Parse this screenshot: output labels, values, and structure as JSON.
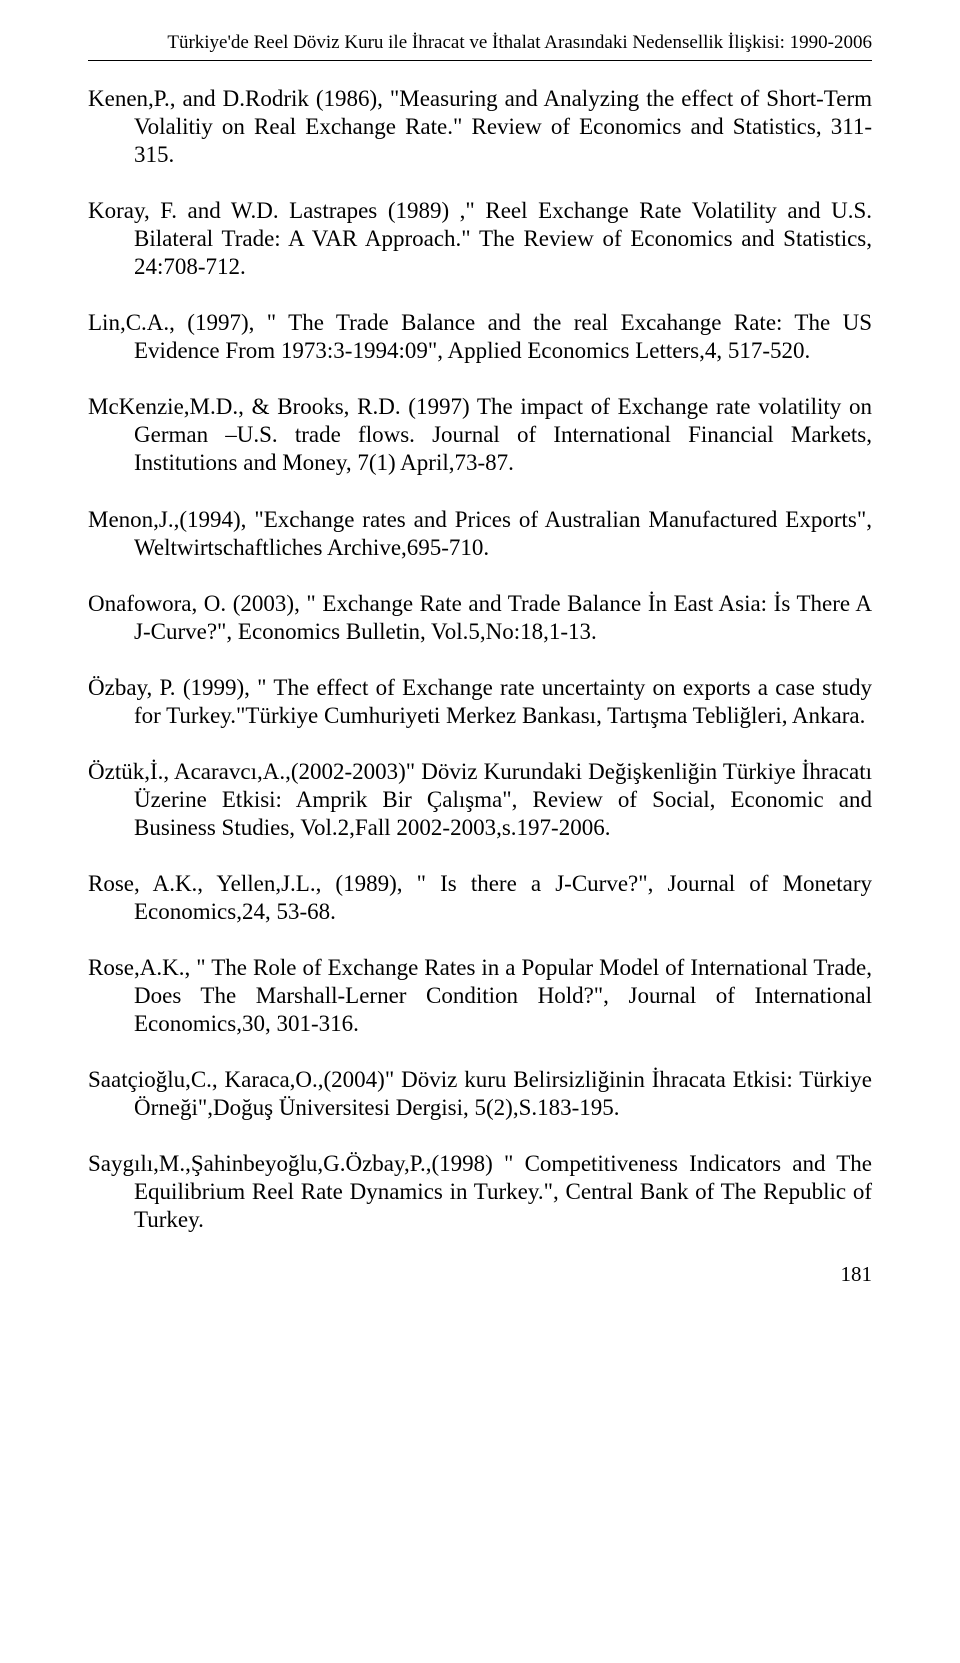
{
  "running_head": "Türkiye'de Reel Döviz Kuru ile İhracat ve İthalat Arasındaki Nedensellik İlişkisi: 1990-2006",
  "refs": {
    "r1": "Kenen,P., and D.Rodrik (1986), \"Measuring and Analyzing the effect of Short-Term Volalitiy on Real Exchange Rate.\" Review of Economics and Statistics, 311-315.",
    "r2": "Koray, F. and W.D. Lastrapes (1989) ,\" Reel Exchange Rate Volatility and U.S. Bilateral Trade: A VAR  Approach.\" The  Review of Economics and Statistics, 24:708-712.",
    "r3": "Lin,C.A., (1997), \" The Trade Balance and the real Excahange Rate: The US Evidence  From 1973:3-1994:09\", Applied Economics Letters,4, 517-520.",
    "r4": "McKenzie,M.D., & Brooks, R.D. (1997) The impact of Exchange rate volatility on German –U.S. trade flows. Journal of International Financial Markets, Institutions and Money, 7(1) April,73-87.",
    "r5": "Menon,J.,(1994), \"Exchange rates and Prices of Australian Manufactured Exports\", Weltwirtschaftliches Archive,695-710.",
    "r6": "Onafowora, O. (2003), \" Exchange Rate and Trade Balance İn East Asia: İs There A J-Curve?\", Economics Bulletin, Vol.5,No:18,1-13.",
    "r7": "Özbay, P. (1999), \" The effect of Exchange rate uncertainty on exports a case study for Turkey.\"Türkiye Cumhuriyeti Merkez Bankası, Tartışma Tebliğleri, Ankara.",
    "r8": "Öztük,İ., Acaravcı,A.,(2002-2003)\" Döviz Kurundaki Değişkenliğin Türkiye İhracatı Üzerine Etkisi: Amprik Bir Çalışma\", Review of Social, Economic and Business Studies, Vol.2,Fall 2002-2003,s.197-2006.",
    "r9": "Rose, A.K., Yellen,J.L., (1989), \" Is there a J-Curve?\", Journal of Monetary Economics,24, 53-68.",
    "r10": "Rose,A.K., \" The Role of Exchange Rates in a Popular Model of International Trade, Does The Marshall-Lerner Condition Hold?\", Journal of International Economics,30, 301-316.",
    "r11": "Saatçioğlu,C., Karaca,O.,(2004)\" Döviz kuru Belirsizliğinin İhracata Etkisi: Türkiye Örneği\",Doğuş Üniversitesi Dergisi, 5(2),S.183-195.",
    "r12": "Saygılı,M.,Şahinbeyoğlu,G.Özbay,P.,(1998) \" Competitiveness Indicators and The Equilibrium Reel Rate Dynamics in Turkey.\", Central Bank of The Republic of Turkey."
  },
  "page_number": "181"
}
